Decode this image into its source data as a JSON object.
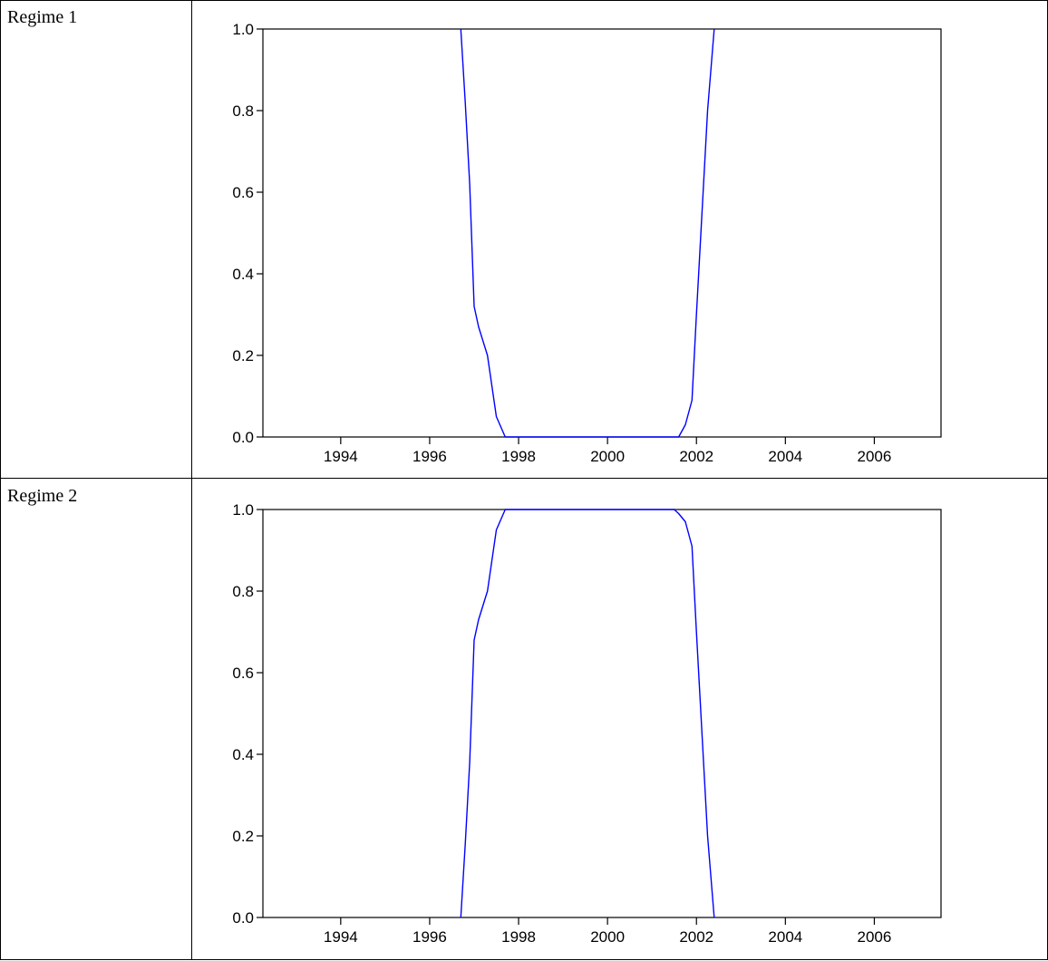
{
  "rows": [
    {
      "label": "Regime 1"
    },
    {
      "label": "Regime 2"
    }
  ],
  "chart_data": [
    {
      "type": "line",
      "title": "",
      "xlabel": "",
      "ylabel": "",
      "xlim": [
        1992.25,
        2007.5
      ],
      "ylim": [
        0.0,
        1.0
      ],
      "x_ticks": [
        "1994",
        "1996",
        "1998",
        "2000",
        "2002",
        "2004",
        "2006"
      ],
      "y_ticks": [
        "0.0",
        "0.2",
        "0.4",
        "0.6",
        "0.8",
        "1.0"
      ],
      "line_color": "#0000ff",
      "grid": false,
      "series": [
        {
          "x": [
            1996.7,
            1996.8,
            1996.9,
            1997.0,
            1997.1,
            1997.3,
            1997.5,
            1997.7,
            1998.0,
            2001.5,
            2001.6,
            2001.75,
            2001.9,
            2002.0,
            2002.25,
            2002.4
          ],
          "y": [
            1.0,
            0.82,
            0.62,
            0.32,
            0.27,
            0.2,
            0.05,
            0.0,
            0.0,
            0.0,
            0.0,
            0.03,
            0.09,
            0.3,
            0.8,
            1.0
          ]
        }
      ]
    },
    {
      "type": "line",
      "title": "",
      "xlabel": "",
      "ylabel": "",
      "xlim": [
        1992.25,
        2007.5
      ],
      "ylim": [
        0.0,
        1.0
      ],
      "x_ticks": [
        "1994",
        "1996",
        "1998",
        "2000",
        "2002",
        "2004",
        "2006"
      ],
      "y_ticks": [
        "0.0",
        "0.2",
        "0.4",
        "0.6",
        "0.8",
        "1.0"
      ],
      "line_color": "#0000ff",
      "grid": false,
      "series": [
        {
          "x": [
            1996.7,
            1996.8,
            1996.9,
            1997.0,
            1997.1,
            1997.3,
            1997.5,
            1997.7,
            1998.0,
            2001.5,
            2001.6,
            2001.75,
            2001.9,
            2002.0,
            2002.25,
            2002.4
          ],
          "y": [
            0.0,
            0.18,
            0.38,
            0.68,
            0.73,
            0.8,
            0.95,
            1.0,
            1.0,
            1.0,
            0.99,
            0.97,
            0.91,
            0.7,
            0.2,
            0.0
          ]
        }
      ]
    }
  ]
}
